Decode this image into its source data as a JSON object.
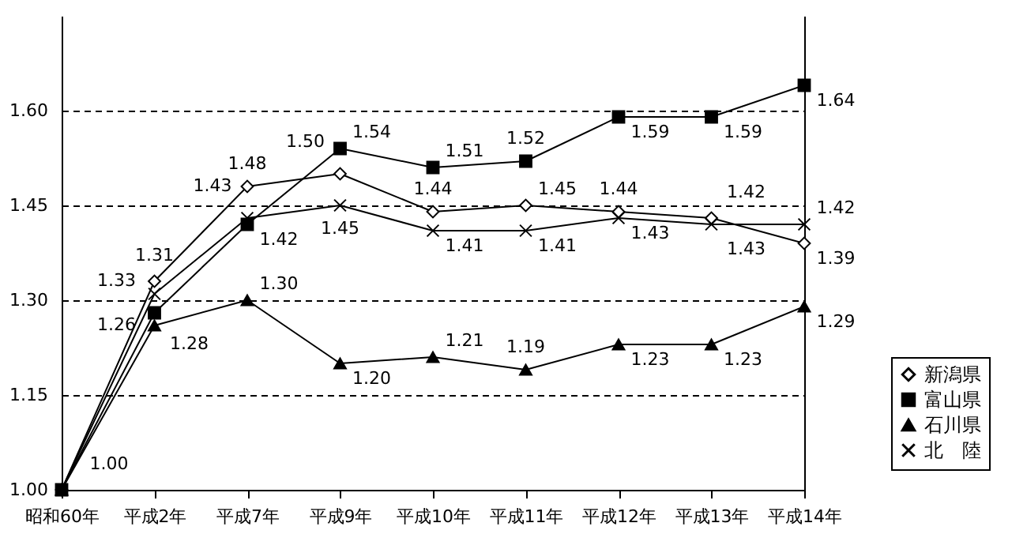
{
  "chart_data": {
    "type": "line",
    "categories": [
      "昭和60年",
      "平成2年",
      "平成7年",
      "平成9年",
      "平成10年",
      "平成11年",
      "平成12年",
      "平成13年",
      "平成14年"
    ],
    "series": [
      {
        "name": "新潟県",
        "color": "#000000",
        "marker": "diamond",
        "values": [
          1.0,
          1.33,
          1.48,
          1.5,
          1.44,
          1.45,
          1.44,
          1.43,
          1.39
        ],
        "value_labels": [
          null,
          "1.33",
          "1.48",
          "1.50",
          "1.44",
          "1.45",
          "1.44",
          "1.43",
          "1.39"
        ]
      },
      {
        "name": "富山県",
        "color": "#000000",
        "marker": "square",
        "values": [
          1.0,
          1.28,
          1.42,
          1.54,
          1.51,
          1.52,
          1.59,
          1.59,
          1.64
        ],
        "value_labels": [
          null,
          "1.28",
          "1.42",
          "1.54",
          "1.51",
          "1.52",
          "1.59",
          "1.59",
          "1.64"
        ]
      },
      {
        "name": "石川県",
        "color": "#000000",
        "marker": "triangle",
        "values": [
          1.0,
          1.26,
          1.3,
          1.2,
          1.21,
          1.19,
          1.23,
          1.23,
          1.29
        ],
        "value_labels": [
          "1.00",
          "1.26",
          "1.30",
          "1.20",
          "1.21",
          "1.19",
          "1.23",
          "1.23",
          "1.29"
        ]
      },
      {
        "name": "北　陸",
        "color": "#000000",
        "marker": "cross",
        "values": [
          1.0,
          1.31,
          1.43,
          1.45,
          1.41,
          1.41,
          1.43,
          1.42,
          1.42
        ],
        "value_labels": [
          null,
          "1.31",
          "1.43",
          "1.45",
          "1.41",
          "1.41",
          "1.43",
          "1.42",
          "1.42"
        ]
      }
    ],
    "ylim": [
      1.0,
      1.75
    ],
    "yticks": [
      {
        "value": 1.0,
        "label": "1.00"
      },
      {
        "value": 1.15,
        "label": "1.15"
      },
      {
        "value": 1.3,
        "label": "1.30"
      },
      {
        "value": 1.45,
        "label": "1.45"
      },
      {
        "value": 1.6,
        "label": "1.60"
      }
    ],
    "grid": "y",
    "legend": "right",
    "line_style": "solid"
  }
}
